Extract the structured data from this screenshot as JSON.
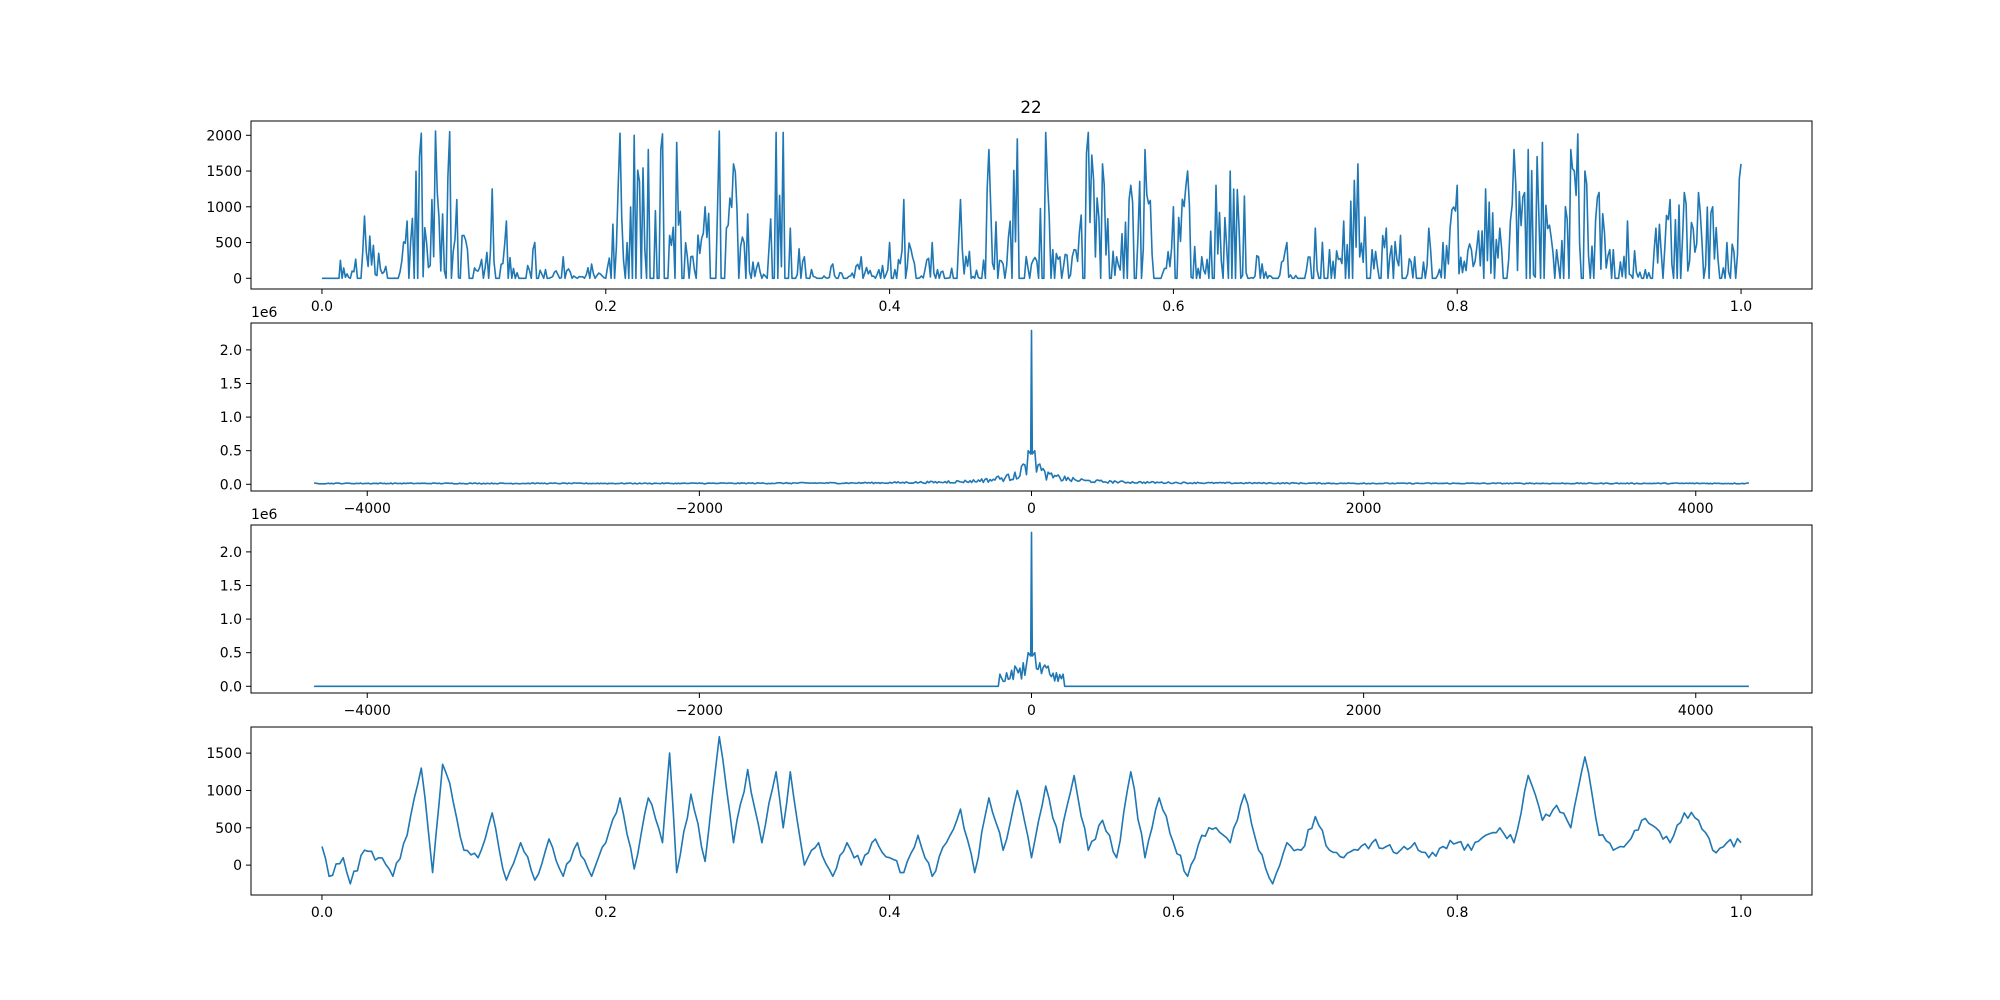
{
  "figure": {
    "title": "22"
  },
  "chart_data": [
    {
      "type": "line",
      "title": "22",
      "xlim": [
        -0.05,
        1.05
      ],
      "ylim": [
        -150,
        2200
      ],
      "x_ticks": [
        0.0,
        0.2,
        0.4,
        0.6,
        0.8,
        1.0
      ],
      "x_tick_labels": [
        "0.0",
        "0.2",
        "0.4",
        "0.6",
        "0.8",
        "1.0"
      ],
      "y_ticks": [
        0,
        500,
        1000,
        1500,
        2000
      ],
      "y_tick_labels": [
        "0",
        "500",
        "1000",
        "1500",
        "2000"
      ],
      "offset_label": "",
      "color": "#1f77b4",
      "series": [
        {
          "x": [
            0.0,
            0.012,
            0.013,
            0.02,
            0.03,
            0.04,
            0.05,
            0.06,
            0.07,
            0.075,
            0.08,
            0.085,
            0.09,
            0.095,
            0.1,
            0.11,
            0.12,
            0.125,
            0.13,
            0.14,
            0.15,
            0.16,
            0.17,
            0.18,
            0.19,
            0.2,
            0.21,
            0.215,
            0.22,
            0.23,
            0.24,
            0.245,
            0.25,
            0.26,
            0.27,
            0.28,
            0.285,
            0.29,
            0.3,
            0.31,
            0.32,
            0.325,
            0.33,
            0.34,
            0.35,
            0.36,
            0.37,
            0.38,
            0.39,
            0.4,
            0.41,
            0.42,
            0.43,
            0.44,
            0.45,
            0.46,
            0.47,
            0.48,
            0.49,
            0.5,
            0.51,
            0.515,
            0.52,
            0.53,
            0.54,
            0.55,
            0.56,
            0.57,
            0.58,
            0.59,
            0.6,
            0.61,
            0.62,
            0.63,
            0.64,
            0.65,
            0.66,
            0.67,
            0.68,
            0.69,
            0.7,
            0.71,
            0.72,
            0.73,
            0.74,
            0.75,
            0.76,
            0.77,
            0.78,
            0.79,
            0.8,
            0.81,
            0.82,
            0.83,
            0.84,
            0.85,
            0.86,
            0.87,
            0.88,
            0.885,
            0.89,
            0.9,
            0.91,
            0.92,
            0.93,
            0.94,
            0.95,
            0.96,
            0.97,
            0.98,
            0.99,
            1.0
          ],
          "y": [
            0,
            0,
            250,
            0,
            870,
            350,
            0,
            800,
            2030,
            150,
            2060,
            900,
            2050,
            1100,
            600,
            100,
            1250,
            0,
            800,
            0,
            500,
            0,
            300,
            0,
            200,
            0,
            2030,
            500,
            2000,
            1800,
            2020,
            600,
            1900,
            300,
            1000,
            2060,
            700,
            1600,
            900,
            0,
            2040,
            2040,
            700,
            300,
            0,
            200,
            0,
            300,
            0,
            500,
            1100,
            0,
            500,
            0,
            1100,
            0,
            1800,
            200,
            1950,
            200,
            2040,
            400,
            300,
            400,
            2040,
            1600,
            300,
            1300,
            1800,
            0,
            1000,
            1500,
            300,
            1300,
            1500,
            1150,
            300,
            0,
            500,
            0,
            700,
            400,
            800,
            1600,
            400,
            700,
            600,
            300,
            700,
            500,
            1300,
            400,
            1250,
            700,
            1800,
            1800,
            1900,
            400,
            1800,
            2020,
            1500,
            1200,
            400,
            800,
            0,
            700,
            1100,
            1200,
            1200,
            1000,
            500,
            1600
          ]
        }
      ]
    },
    {
      "type": "line",
      "title": "",
      "xlim": [
        -4700,
        4700
      ],
      "ylim": [
        -100000,
        2400000
      ],
      "x_ticks": [
        -4000,
        -2000,
        0,
        2000,
        4000
      ],
      "x_tick_labels": [
        "−4000",
        "−2000",
        "0",
        "2000",
        "4000"
      ],
      "y_ticks": [
        0,
        500000,
        1000000,
        1500000,
        2000000
      ],
      "y_tick_labels": [
        "0.0",
        "0.5",
        "1.0",
        "1.5",
        "2.0"
      ],
      "offset_label": "1e6",
      "color": "#1f77b4",
      "series": [
        {
          "x": [
            -4320,
            -3000,
            -2000,
            -1000,
            -500,
            -300,
            -200,
            -100,
            -50,
            -20,
            -5,
            0,
            5,
            20,
            50,
            100,
            200,
            300,
            500,
            1000,
            2000,
            3000,
            4320
          ],
          "y": [
            20000,
            20000,
            20000,
            30000,
            50000,
            80000,
            120000,
            180000,
            300000,
            500000,
            450000,
            2290000,
            450000,
            500000,
            300000,
            180000,
            120000,
            80000,
            50000,
            30000,
            20000,
            20000,
            20000
          ]
        }
      ]
    },
    {
      "type": "line",
      "title": "",
      "xlim": [
        -4700,
        4700
      ],
      "ylim": [
        -100000,
        2400000
      ],
      "x_ticks": [
        -4000,
        -2000,
        0,
        2000,
        4000
      ],
      "x_tick_labels": [
        "−4000",
        "−2000",
        "0",
        "2000",
        "4000"
      ],
      "y_ticks": [
        0,
        500000,
        1000000,
        1500000,
        2000000
      ],
      "y_tick_labels": [
        "0.0",
        "0.5",
        "1.0",
        "1.5",
        "2.0"
      ],
      "offset_label": "1e6",
      "color": "#1f77b4",
      "series": [
        {
          "x": [
            -4320,
            -200,
            -190,
            -150,
            -100,
            -50,
            -20,
            -5,
            0,
            5,
            20,
            50,
            100,
            150,
            190,
            200,
            4320
          ],
          "y": [
            0,
            0,
            180000,
            200000,
            300000,
            350000,
            500000,
            450000,
            2290000,
            450000,
            500000,
            350000,
            300000,
            200000,
            180000,
            0,
            0
          ]
        }
      ]
    },
    {
      "type": "line",
      "title": "",
      "xlim": [
        -0.05,
        1.05
      ],
      "ylim": [
        -400,
        1850
      ],
      "x_ticks": [
        0.0,
        0.2,
        0.4,
        0.6,
        0.8,
        1.0
      ],
      "x_tick_labels": [
        "0.0",
        "0.2",
        "0.4",
        "0.6",
        "0.8",
        "1.0"
      ],
      "y_ticks": [
        0,
        500,
        1000,
        1500
      ],
      "y_tick_labels": [
        "0",
        "500",
        "1000",
        "1500"
      ],
      "offset_label": "",
      "color": "#1f77b4",
      "series": [
        {
          "x": [
            0.0,
            0.005,
            0.015,
            0.02,
            0.03,
            0.04,
            0.05,
            0.06,
            0.07,
            0.078,
            0.085,
            0.09,
            0.1,
            0.11,
            0.12,
            0.125,
            0.13,
            0.14,
            0.15,
            0.16,
            0.17,
            0.18,
            0.19,
            0.2,
            0.21,
            0.22,
            0.23,
            0.24,
            0.245,
            0.25,
            0.26,
            0.27,
            0.28,
            0.29,
            0.3,
            0.31,
            0.32,
            0.325,
            0.33,
            0.34,
            0.35,
            0.36,
            0.37,
            0.38,
            0.39,
            0.4,
            0.41,
            0.42,
            0.43,
            0.44,
            0.45,
            0.46,
            0.47,
            0.48,
            0.49,
            0.5,
            0.51,
            0.52,
            0.53,
            0.54,
            0.55,
            0.56,
            0.57,
            0.58,
            0.59,
            0.6,
            0.61,
            0.62,
            0.63,
            0.64,
            0.65,
            0.66,
            0.67,
            0.68,
            0.69,
            0.7,
            0.71,
            0.72,
            0.73,
            0.74,
            0.75,
            0.76,
            0.77,
            0.78,
            0.79,
            0.8,
            0.81,
            0.82,
            0.83,
            0.84,
            0.85,
            0.86,
            0.87,
            0.88,
            0.885,
            0.89,
            0.9,
            0.91,
            0.92,
            0.93,
            0.94,
            0.95,
            0.96,
            0.97,
            0.98,
            0.99,
            1.0
          ],
          "y": [
            250,
            -150,
            100,
            -250,
            200,
            100,
            -150,
            400,
            1300,
            -100,
            1350,
            1100,
            200,
            100,
            700,
            200,
            -200,
            300,
            -200,
            350,
            -150,
            300,
            -150,
            300,
            900,
            -50,
            900,
            300,
            1500,
            -100,
            950,
            50,
            1720,
            300,
            1280,
            300,
            1250,
            500,
            1250,
            0,
            300,
            -150,
            300,
            0,
            350,
            100,
            -100,
            400,
            -150,
            300,
            750,
            -100,
            900,
            200,
            1000,
            100,
            1060,
            300,
            1200,
            200,
            600,
            100,
            1250,
            100,
            900,
            300,
            -150,
            400,
            500,
            300,
            950,
            200,
            -250,
            300,
            200,
            650,
            200,
            100,
            200,
            300,
            250,
            200,
            300,
            100,
            250,
            300,
            200,
            400,
            500,
            300,
            1200,
            600,
            800,
            500,
            1000,
            1450,
            400,
            200,
            300,
            600,
            500,
            300,
            700,
            600,
            200,
            300,
            300
          ]
        }
      ]
    }
  ]
}
